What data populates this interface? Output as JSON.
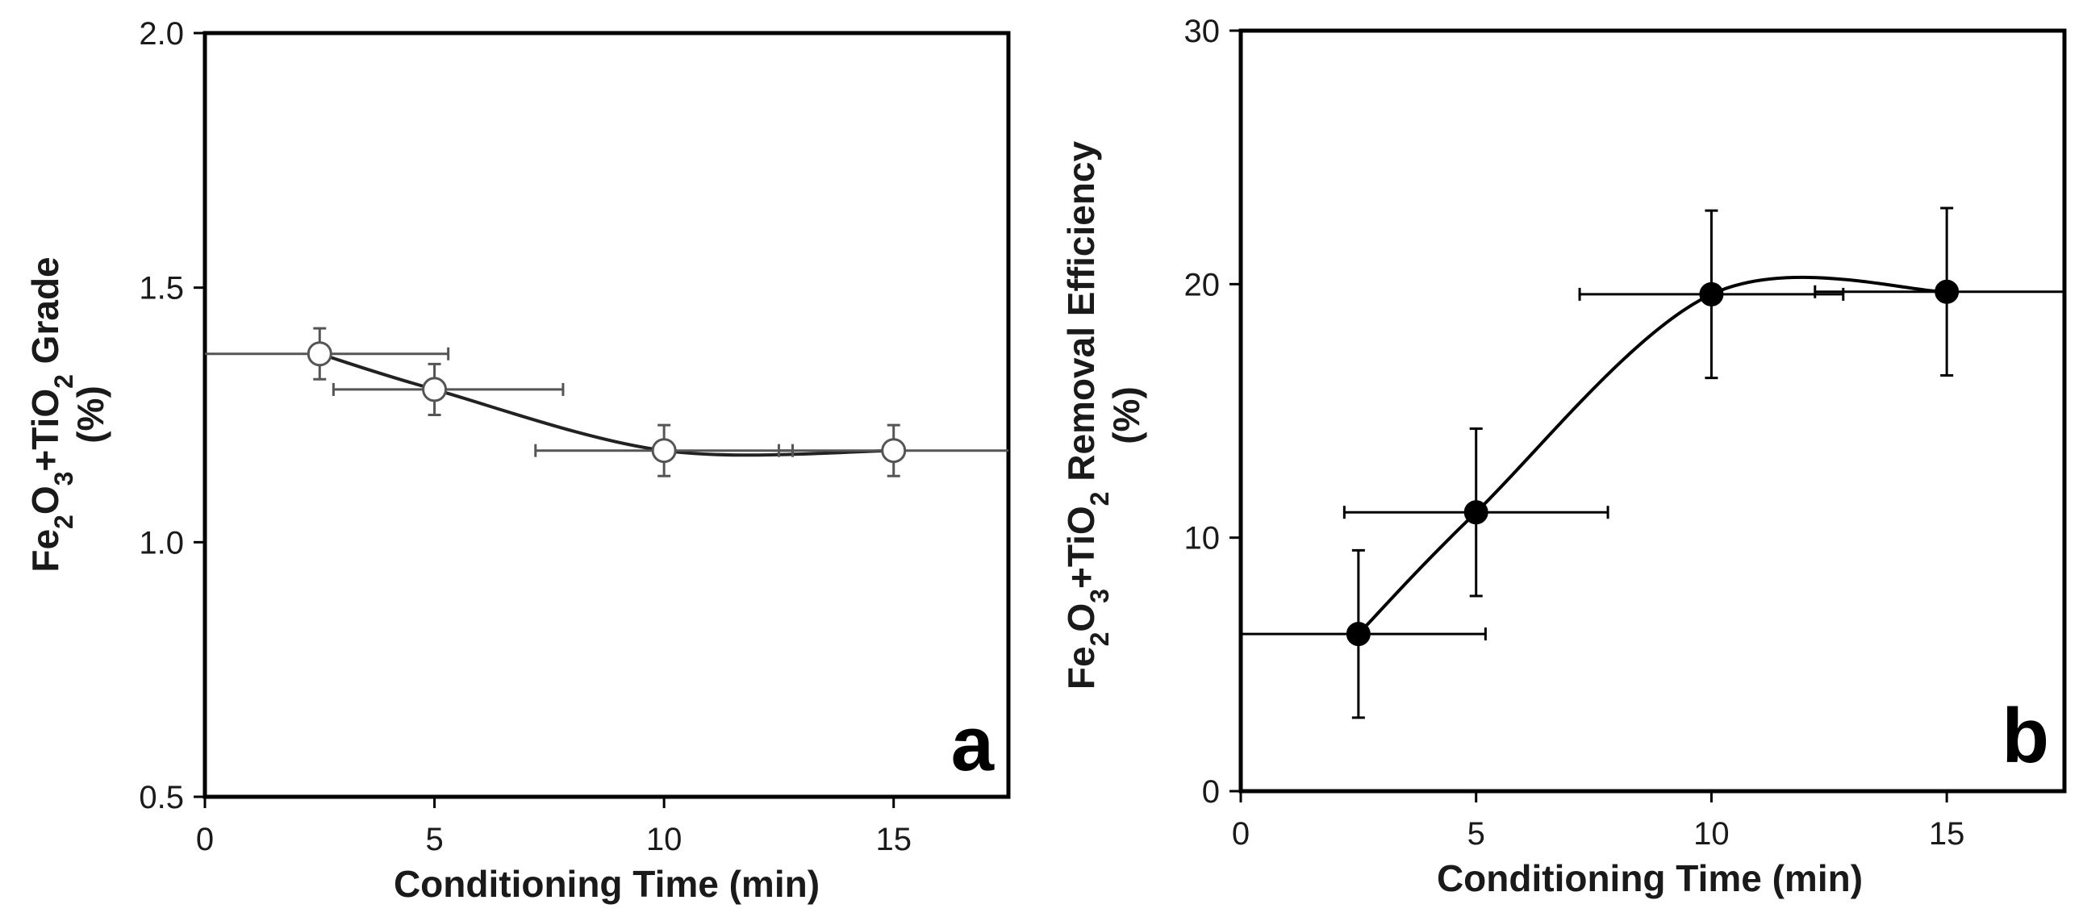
{
  "chart_data": [
    {
      "type": "line",
      "panel_label": "a",
      "title": "",
      "xlabel": "Conditioning Time (min)",
      "ylabel_parts": [
        {
          "text": "Fe",
          "sub": false
        },
        {
          "text": "2",
          "sub": true
        },
        {
          "text": "O",
          "sub": false
        },
        {
          "text": "3",
          "sub": true
        },
        {
          "text": "+TiO",
          "sub": false
        },
        {
          "text": "2",
          "sub": true
        },
        {
          "text": " Grade",
          "sub": false
        }
      ],
      "ylabel_unit": "(%)",
      "xlim": [
        0,
        17.5
      ],
      "ylim": [
        0.5,
        2.0
      ],
      "xticks": [
        0,
        5,
        10,
        15
      ],
      "yticks": [
        0.5,
        1.0,
        1.5,
        2.0
      ],
      "xtick_labels": [
        "0",
        "5",
        "10",
        "15"
      ],
      "ytick_labels": [
        "0.5",
        "1.0",
        "1.5",
        "2.0"
      ],
      "marker": "open-circle",
      "line_color": "#222222",
      "errorbar_color": "#555555",
      "series": [
        {
          "name": "Grade",
          "x": [
            2.5,
            5,
            10,
            15
          ],
          "y": [
            1.37,
            1.3,
            1.18,
            1.18
          ],
          "x_err_low": [
            2.5,
            2.2,
            2.8,
            2.5
          ],
          "x_err_high": [
            2.8,
            2.8,
            2.8,
            2.5
          ],
          "y_err": [
            0.05,
            0.05,
            0.05,
            0.05
          ]
        }
      ]
    },
    {
      "type": "line",
      "panel_label": "b",
      "title": "",
      "xlabel": "Conditioning Time (min)",
      "ylabel_parts": [
        {
          "text": "Fe",
          "sub": false
        },
        {
          "text": "2",
          "sub": true
        },
        {
          "text": "O",
          "sub": false
        },
        {
          "text": "3",
          "sub": true
        },
        {
          "text": "+TiO",
          "sub": false
        },
        {
          "text": "2",
          "sub": true
        },
        {
          "text": " Removal Efficiency",
          "sub": false
        }
      ],
      "ylabel_unit": "(%)",
      "xlim": [
        0,
        17.5
      ],
      "ylim": [
        0,
        30
      ],
      "xticks": [
        0,
        5,
        10,
        15
      ],
      "yticks": [
        0,
        10,
        20,
        30
      ],
      "xtick_labels": [
        "0",
        "5",
        "10",
        "15"
      ],
      "ytick_labels": [
        "0",
        "10",
        "20",
        "30"
      ],
      "marker": "filled-circle",
      "line_color": "#000000",
      "errorbar_color": "#000000",
      "series": [
        {
          "name": "Removal Efficiency",
          "x": [
            2.5,
            5,
            10,
            15
          ],
          "y": [
            6.2,
            11.0,
            19.6,
            19.7
          ],
          "x_err_low": [
            2.5,
            2.8,
            2.8,
            2.8
          ],
          "x_err_high": [
            2.7,
            2.8,
            2.8,
            2.5
          ],
          "y_err": [
            3.3,
            3.3,
            3.3,
            3.3
          ]
        }
      ]
    }
  ]
}
